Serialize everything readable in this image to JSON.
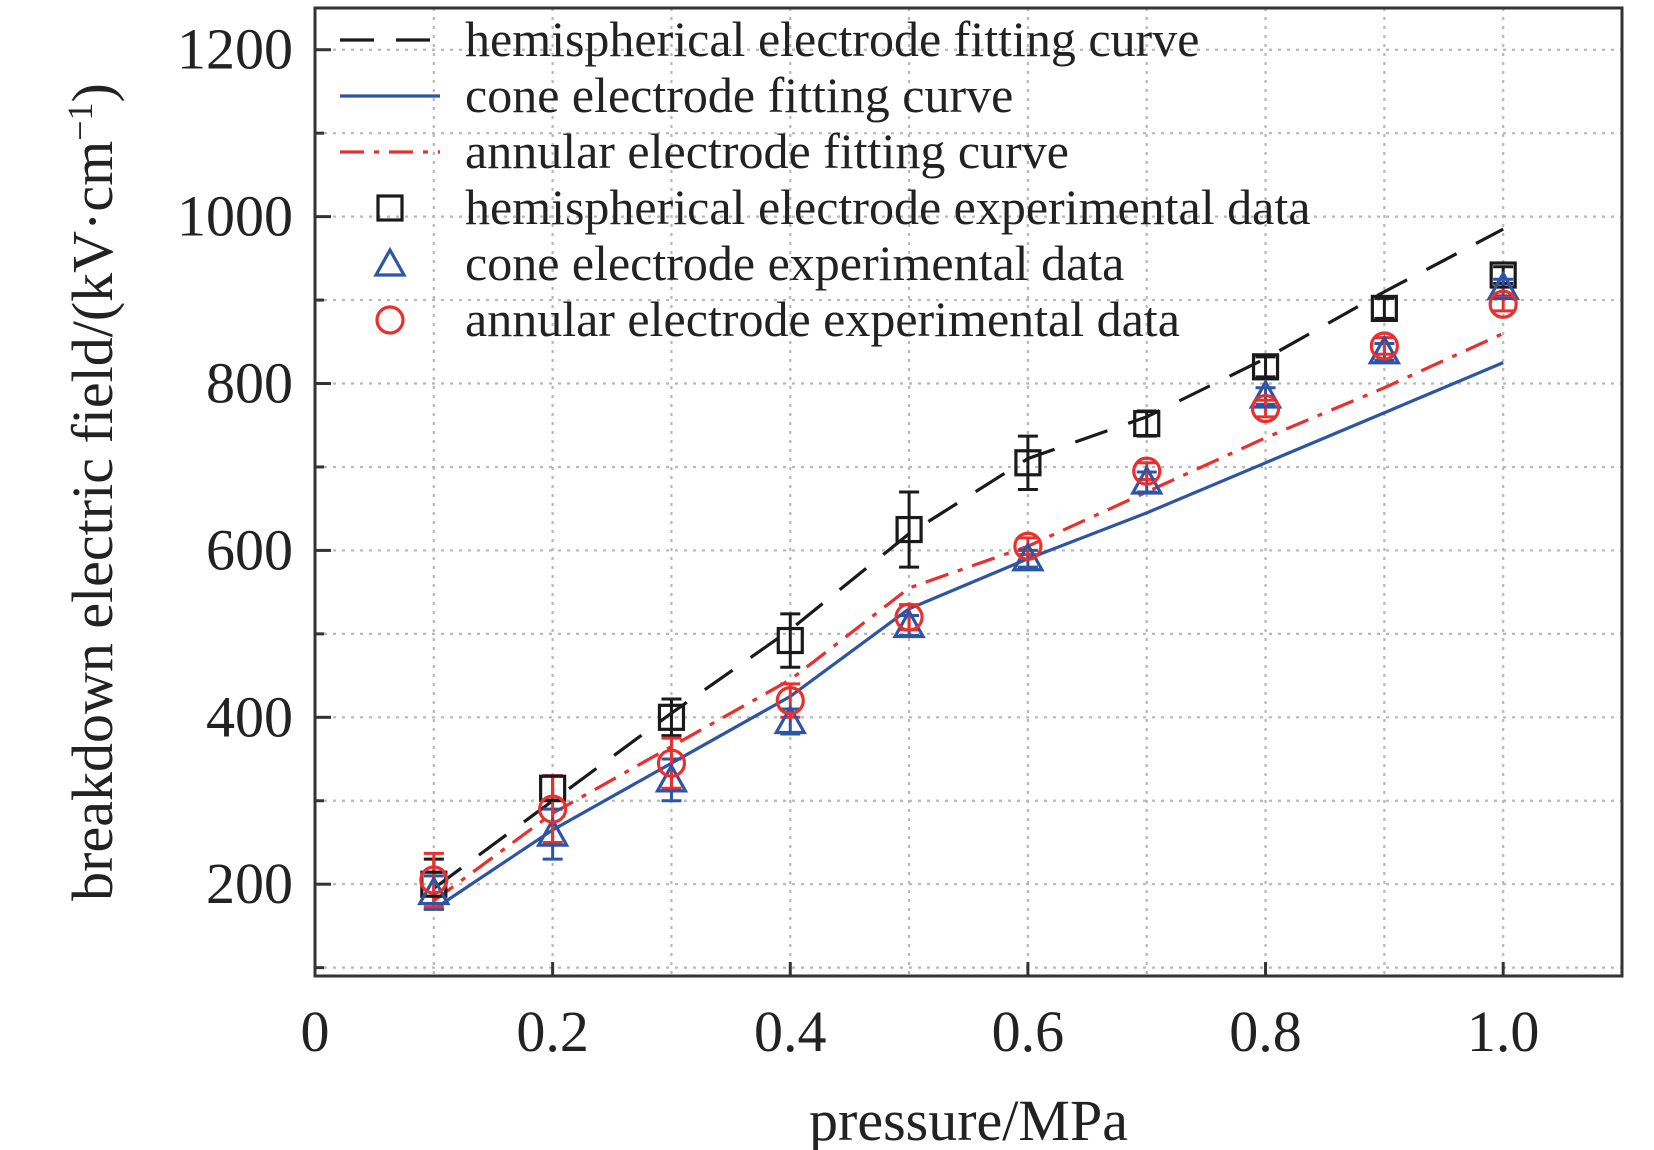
{
  "chart_data": {
    "type": "line",
    "title": "",
    "xlabel": "pressure/MPa",
    "ylabel": "breakdown electric field/(kV·cm",
    "ylabel_superscript": "−1",
    "ylabel_close": ")",
    "xlim": [
      0,
      1.1
    ],
    "ylim": [
      90,
      1250
    ],
    "x_ticks": [
      0,
      0.2,
      0.4,
      0.6,
      0.8,
      1.0
    ],
    "x_tick_labels": [
      "0",
      "0.2",
      "0.4",
      "0.6",
      "0.8",
      "1.0"
    ],
    "y_ticks": [
      200,
      400,
      600,
      800,
      1000,
      1200
    ],
    "y_tick_labels": [
      "200",
      "400",
      "600",
      "800",
      "1000",
      "1200"
    ],
    "grid": true,
    "legend_position": "top-left",
    "x": [
      0.1,
      0.2,
      0.3,
      0.4,
      0.5,
      0.6,
      0.7,
      0.8,
      0.9,
      1.0
    ],
    "fit_curves": [
      {
        "name": "hemispherical electrode fitting curve",
        "color": "#1a1a1a",
        "dash": "long-dash",
        "y": [
          195,
          300,
          405,
          505,
          620,
          710,
          760,
          830,
          910,
          985
        ]
      },
      {
        "name": "cone electrode fitting curve",
        "color": "#2e55a5",
        "dash": "solid",
        "y": [
          170,
          265,
          345,
          425,
          530,
          590,
          645,
          705,
          765,
          825
        ]
      },
      {
        "name": "annular electrode fitting curve",
        "color": "#e8302e",
        "dash": "dash-dot",
        "y": [
          180,
          285,
          365,
          445,
          555,
          605,
          670,
          735,
          795,
          860
        ]
      }
    ],
    "experimental_data": [
      {
        "name": "hemispherical electrode experimental data",
        "color": "#1a1a1a",
        "marker": "square",
        "y": [
          200,
          315,
          400,
          492,
          625,
          705,
          752,
          820,
          890,
          930
        ],
        "err": [
          30,
          15,
          22,
          32,
          45,
          32,
          15,
          12,
          12,
          10
        ]
      },
      {
        "name": "cone electrode experimental data",
        "color": "#2e55a5",
        "marker": "triangle",
        "y": [
          190,
          260,
          325,
          395,
          510,
          590,
          682,
          785,
          838,
          915
        ],
        "err": [
          20,
          30,
          25,
          15,
          12,
          10,
          12,
          10,
          10,
          10
        ]
      },
      {
        "name": "annular electrode experimental data",
        "color": "#e8302e",
        "marker": "circle",
        "y": [
          205,
          290,
          345,
          420,
          520,
          605,
          695,
          770,
          845,
          895
        ],
        "err": [
          32,
          40,
          30,
          20,
          15,
          10,
          10,
          10,
          10,
          8
        ]
      }
    ]
  }
}
